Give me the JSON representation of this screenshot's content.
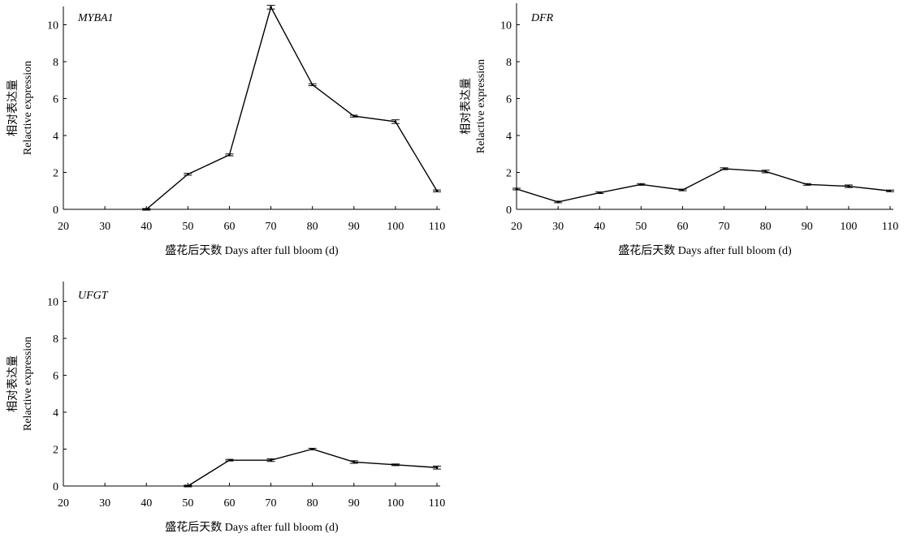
{
  "chart_data": [
    {
      "type": "line",
      "gene_label": "MYBA1",
      "xlabel": "盛花后天数 Days after full bloom (d)",
      "ylabel_cn": "相对表达量",
      "ylabel_en": "Relactive expression",
      "x": [
        20,
        30,
        40,
        50,
        60,
        70,
        80,
        90,
        100,
        110
      ],
      "values": [
        null,
        null,
        0,
        1.9,
        2.95,
        10.95,
        6.75,
        5.05,
        4.75,
        1.0
      ],
      "errors": [
        0,
        0,
        0,
        0.05,
        0.05,
        0.1,
        0.05,
        0.05,
        0.1,
        0.05
      ],
      "xticks": [
        "20",
        "30",
        "40",
        "50",
        "60",
        "70",
        "80",
        "90",
        "100",
        "110"
      ],
      "yticks": [
        "0",
        "2",
        "4",
        "6",
        "8",
        "10"
      ],
      "ylim": [
        0,
        11
      ],
      "grid": false
    },
    {
      "type": "line",
      "gene_label": "DFR",
      "xlabel": "盛花后天数 Days after full bloom (d)",
      "ylabel_cn": "相对表达量",
      "ylabel_en": "Relactive expression",
      "x": [
        20,
        30,
        40,
        50,
        60,
        70,
        80,
        90,
        100,
        110
      ],
      "values": [
        1.1,
        0.4,
        0.9,
        1.35,
        1.05,
        2.2,
        2.05,
        1.35,
        1.25,
        1.0
      ],
      "errors": [
        0.03,
        0.03,
        0.03,
        0.03,
        0.03,
        0.05,
        0.07,
        0.03,
        0.07,
        0.03
      ],
      "xticks": [
        "20",
        "30",
        "40",
        "50",
        "60",
        "70",
        "80",
        "90",
        "100",
        "110"
      ],
      "yticks": [
        "0",
        "2",
        "4",
        "6",
        "8",
        "10"
      ],
      "ylim": [
        0,
        11
      ],
      "grid": false
    },
    {
      "type": "line",
      "gene_label": "UFGT",
      "xlabel": "盛花后天数 Days after full bloom (d)",
      "ylabel_cn": "相对表达量",
      "ylabel_en": "Relactive expression",
      "x": [
        20,
        30,
        40,
        50,
        60,
        70,
        80,
        90,
        100,
        110
      ],
      "values": [
        null,
        null,
        null,
        0,
        1.4,
        1.4,
        2.0,
        1.3,
        1.15,
        1.0
      ],
      "errors": [
        0,
        0,
        0,
        0,
        0.03,
        0.07,
        0.03,
        0.07,
        0.03,
        0.08
      ],
      "xticks": [
        "20",
        "30",
        "40",
        "50",
        "60",
        "70",
        "80",
        "90",
        "100",
        "110"
      ],
      "yticks": [
        "0",
        "2",
        "4",
        "6",
        "8",
        "10"
      ],
      "ylim": [
        0,
        11
      ],
      "grid": false
    }
  ]
}
